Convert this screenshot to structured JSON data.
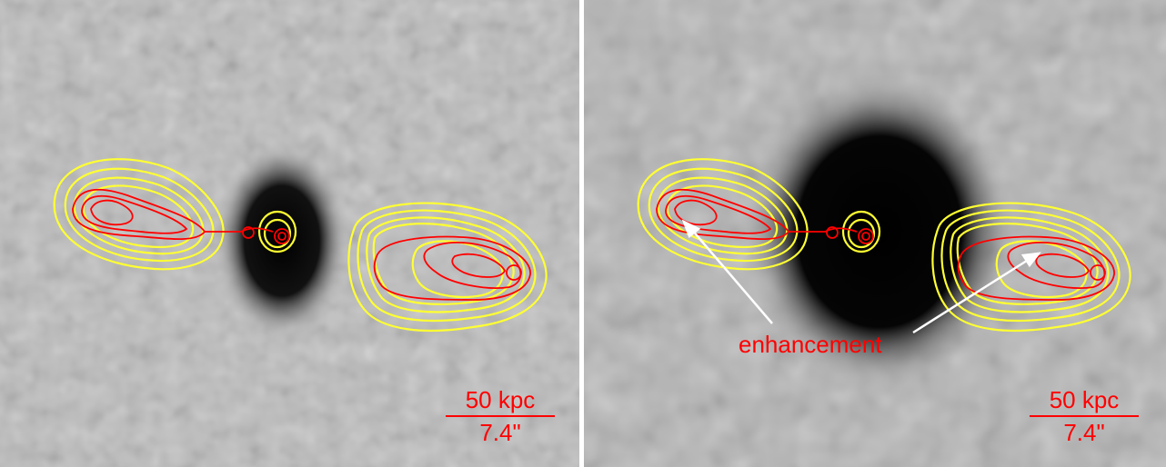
{
  "panels": [
    {
      "id": "left",
      "scalebar": {
        "distance": "50 kpc",
        "angular": "7.4\""
      }
    },
    {
      "id": "right",
      "scalebar": {
        "distance": "50 kpc",
        "angular": "7.4\""
      },
      "annotation": "enhancement"
    }
  ],
  "colors": {
    "background_gray": "#bdbdbd",
    "core": "#000000",
    "contour_outer": "#ffff33",
    "contour_inner": "#ff0000",
    "label": "#ff0000",
    "arrow": "#ffffff"
  }
}
